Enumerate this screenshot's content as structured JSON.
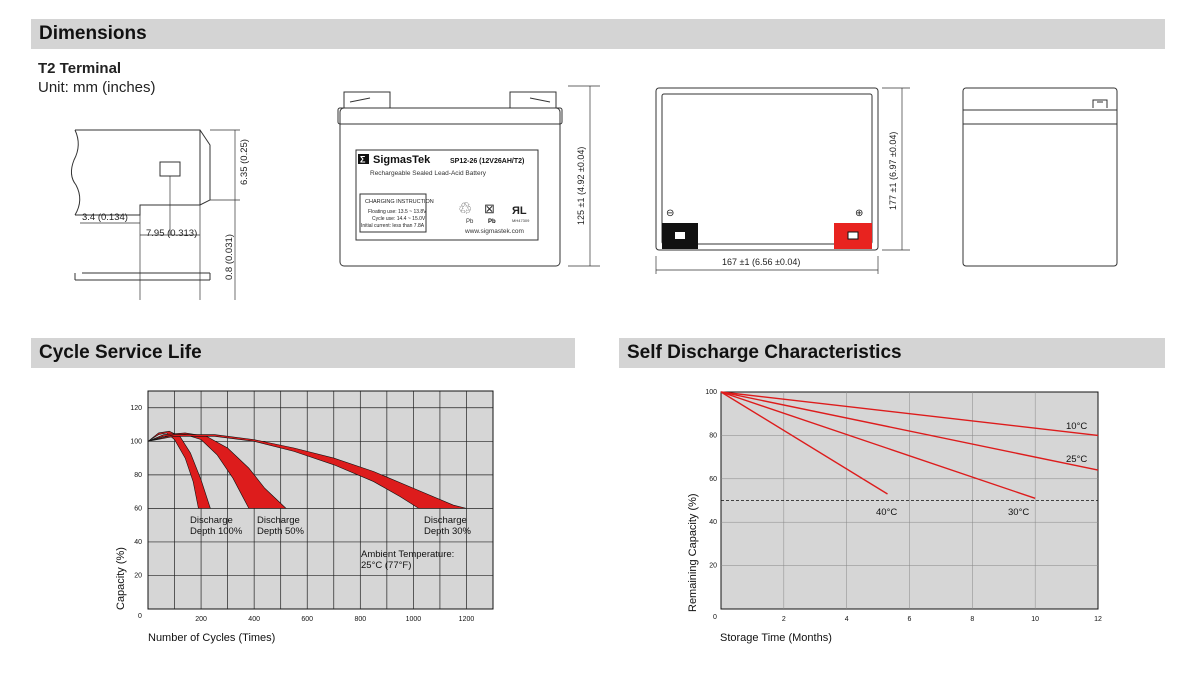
{
  "sections": {
    "dimensions": "Dimensions",
    "cycle_life": "Cycle Service Life",
    "self_discharge": "Self Discharge Characteristics"
  },
  "terminal": {
    "title": "T2 Terminal",
    "unit": "Unit: mm (inches)",
    "dim_height": "6.35 (0.25)",
    "dim_thickness": "0.8 (0.031)",
    "dim_offset": "3.4 (0.134)",
    "dim_width": "7.95 (0.313)"
  },
  "battery_label": {
    "brand": "SigmasTek",
    "model": "SP12-26 (12V26AH/T2)",
    "subtitle": "Rechargeable Sealed Lead-Acid Battery",
    "charging_title": "CHARGING INSTRUCTION",
    "floating": "Floating use: 13.5 ~ 13.8V",
    "cycle": "Cycle use: 14.4 ~ 15.0V",
    "initial": "Initial current: less than 7.8A",
    "pb1": "Pb",
    "pb2": "Pb",
    "ul_code": "MH47309",
    "website": "www.sigmastek.com",
    "height_dim": "125 ±1 (4.92 ±0.04)"
  },
  "top_view": {
    "minus": "⊖",
    "plus": "⊕",
    "width_dim": "167 ±1 (6.56 ±0.04)",
    "depth_dim": "177 ±1 (6.97 ±0.04)"
  },
  "colors": {
    "section_bar": "#d4d4d4",
    "chart_bg": "#d6d6d6",
    "curve_red": "#dd1c1c",
    "terminal_red": "#e8231f"
  },
  "chart_data": [
    {
      "type": "area",
      "title": "",
      "xlabel": "Number of Cycles (Times)",
      "ylabel": "Capacity (%)",
      "xlim": [
        0,
        1300
      ],
      "ylim": [
        0,
        130
      ],
      "xticks": [
        200,
        400,
        600,
        800,
        1000,
        1200
      ],
      "yticks": [
        20,
        40,
        60,
        80,
        100,
        120
      ],
      "xtick_labels": [
        "200",
        "400",
        "600",
        "800",
        "1000",
        "1200"
      ],
      "ytick_labels": [
        "20",
        "40",
        "60",
        "80",
        "100",
        "120"
      ],
      "origin_label": "0",
      "grid": true,
      "annotations": [
        "Discharge Depth 100%",
        "Discharge Depth 50%",
        "Discharge Depth 30%",
        "Ambient Temperature: 25°C (77°F)"
      ],
      "series": [
        {
          "name": "Discharge Depth 100%",
          "upper": [
            [
              0,
              100
            ],
            [
              40,
              105
            ],
            [
              80,
              106
            ],
            [
              120,
              103
            ],
            [
              160,
              93
            ],
            [
              200,
              77
            ],
            [
              235,
              60
            ]
          ],
          "lower": [
            [
              0,
              100
            ],
            [
              40,
              104
            ],
            [
              70,
              105
            ],
            [
              100,
              101
            ],
            [
              140,
              90
            ],
            [
              170,
              76
            ],
            [
              190,
              60
            ]
          ]
        },
        {
          "name": "Discharge Depth 50%",
          "upper": [
            [
              0,
              100
            ],
            [
              60,
              104
            ],
            [
              140,
              105
            ],
            [
              220,
              103
            ],
            [
              300,
              96
            ],
            [
              380,
              84
            ],
            [
              440,
              72
            ],
            [
              520,
              60
            ]
          ],
          "lower": [
            [
              0,
              100
            ],
            [
              60,
              103
            ],
            [
              140,
              104
            ],
            [
              200,
              101
            ],
            [
              260,
              92
            ],
            [
              320,
              78
            ],
            [
              360,
              66
            ],
            [
              380,
              60
            ]
          ]
        },
        {
          "name": "Discharge Depth 30%",
          "upper": [
            [
              0,
              100
            ],
            [
              100,
              104
            ],
            [
              250,
              104
            ],
            [
              400,
              101
            ],
            [
              550,
              96
            ],
            [
              700,
              90
            ],
            [
              850,
              82
            ],
            [
              1000,
              72
            ],
            [
              1150,
              62
            ],
            [
              1200,
              60
            ]
          ],
          "lower": [
            [
              0,
              100
            ],
            [
              100,
              103
            ],
            [
              250,
              103
            ],
            [
              400,
              100
            ],
            [
              550,
              94
            ],
            [
              700,
              86
            ],
            [
              850,
              76
            ],
            [
              950,
              67
            ],
            [
              1020,
              60
            ]
          ]
        }
      ]
    },
    {
      "type": "line",
      "title": "",
      "xlabel": "Storage Time (Months)",
      "ylabel": "Remaining Capacity (%)",
      "xlim": [
        0,
        12
      ],
      "ylim": [
        0,
        100
      ],
      "xticks": [
        2,
        4,
        6,
        8,
        10,
        12
      ],
      "yticks": [
        20,
        40,
        60,
        80,
        100
      ],
      "xtick_labels": [
        "2",
        "4",
        "6",
        "8",
        "10",
        "12"
      ],
      "ytick_labels": [
        "20",
        "40",
        "60",
        "80",
        "100"
      ],
      "origin_label": "0",
      "grid": true,
      "reference_line": 50,
      "series": [
        {
          "name": "10°C",
          "x": [
            0,
            12
          ],
          "y": [
            100,
            80
          ]
        },
        {
          "name": "25°C",
          "x": [
            0,
            12
          ],
          "y": [
            100,
            64
          ]
        },
        {
          "name": "30°C",
          "x": [
            0,
            10
          ],
          "y": [
            100,
            51
          ]
        },
        {
          "name": "40°C",
          "x": [
            0,
            5.3
          ],
          "y": [
            100,
            53
          ]
        }
      ]
    }
  ]
}
